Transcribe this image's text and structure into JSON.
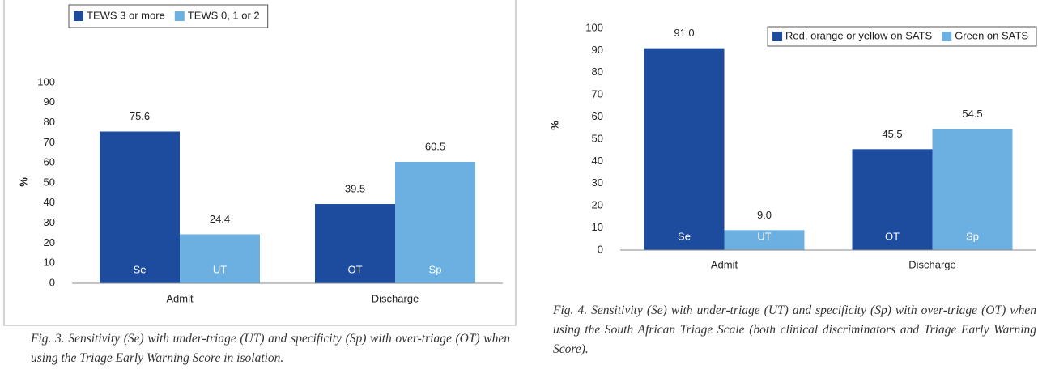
{
  "chart_data": [
    {
      "type": "bar",
      "categories": [
        "Admit",
        "Discharge"
      ],
      "series": [
        {
          "name": "TEWS 3 or more",
          "color": "#1d4b9e",
          "values": [
            75.6,
            39.5
          ],
          "bar_labels": [
            "Se",
            "OT"
          ]
        },
        {
          "name": "TEWS 0, 1 or 2",
          "color": "#6cb0e2",
          "values": [
            24.4,
            60.5
          ],
          "bar_labels": [
            "UT",
            "Sp"
          ]
        }
      ],
      "ylabel": "%",
      "ylim": [
        0,
        100
      ],
      "yticks": [
        0,
        10,
        20,
        30,
        40,
        50,
        60,
        70,
        80,
        90,
        100
      ],
      "legend": "top-left",
      "caption": "Fig. 3. Sensitivity (Se) with under-triage (UT) and specificity (Sp) with over-triage (OT) when using the Triage Early Warning Score in isolation."
    },
    {
      "type": "bar",
      "categories": [
        "Admit",
        "Discharge"
      ],
      "series": [
        {
          "name": "Red, orange or yellow on SATS",
          "color": "#1d4b9e",
          "values": [
            91,
            45.5
          ],
          "value_labels": [
            "91.0",
            "45.5"
          ],
          "bar_labels": [
            "Se",
            "OT"
          ]
        },
        {
          "name": "Green on SATS",
          "color": "#6cb0e2",
          "values": [
            9,
            54.5
          ],
          "value_labels": [
            "9.0",
            "54.5"
          ],
          "bar_labels": [
            "UT",
            "Sp"
          ]
        }
      ],
      "ylabel": "%",
      "ylim": [
        0,
        100
      ],
      "yticks": [
        0,
        10,
        20,
        30,
        40,
        50,
        60,
        70,
        80,
        90,
        100
      ],
      "legend": "top-right",
      "caption": "Fig. 4. Sensitivity (Se) with under-triage (UT) and specificity (Sp) with over-triage (OT) when using the South African Triage Scale (both clinical discriminators and Triage Early Warning Score)."
    }
  ]
}
